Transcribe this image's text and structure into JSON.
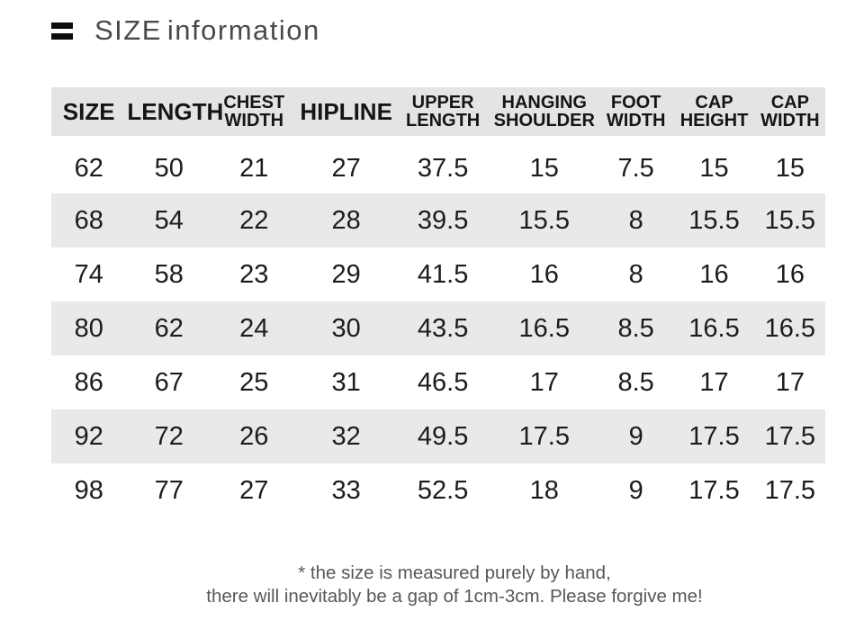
{
  "header": {
    "icon": "list-icon",
    "title_word1": "SIZE",
    "title_word2": "information"
  },
  "table": {
    "columns": [
      {
        "label": "SIZE",
        "lines": [
          "SIZE"
        ]
      },
      {
        "label": "LENGTH",
        "lines": [
          "LENGTH"
        ]
      },
      {
        "label": "CHEST WIDTH",
        "lines": [
          "CHEST",
          "WIDTH"
        ]
      },
      {
        "label": "HIPLINE",
        "lines": [
          "HIPLINE"
        ]
      },
      {
        "label": "UPPER LENGTH",
        "lines": [
          "UPPER",
          "LENGTH"
        ]
      },
      {
        "label": "HANGING SHOULDER",
        "lines": [
          "HANGING",
          "SHOULDER"
        ]
      },
      {
        "label": "FOOT WIDTH",
        "lines": [
          "FOOT",
          "WIDTH"
        ]
      },
      {
        "label": "CAP HEIGHT",
        "lines": [
          "CAP",
          "HEIGHT"
        ]
      },
      {
        "label": "CAP WIDTH",
        "lines": [
          "CAP",
          "WIDTH"
        ]
      }
    ],
    "col_widths_pct": [
      9.7,
      11.0,
      11.0,
      12.8,
      12.2,
      14.0,
      9.7,
      10.5,
      9.1
    ],
    "rows": [
      [
        "62",
        "50",
        "21",
        "27",
        "37.5",
        "15",
        "7.5",
        "15",
        "15"
      ],
      [
        "68",
        "54",
        "22",
        "28",
        "39.5",
        "15.5",
        "8",
        "15.5",
        "15.5"
      ],
      [
        "74",
        "58",
        "23",
        "29",
        "41.5",
        "16",
        "8",
        "16",
        "16"
      ],
      [
        "80",
        "62",
        "24",
        "30",
        "43.5",
        "16.5",
        "8.5",
        "16.5",
        "16.5"
      ],
      [
        "86",
        "67",
        "25",
        "31",
        "46.5",
        "17",
        "8.5",
        "17",
        "17"
      ],
      [
        "92",
        "72",
        "26",
        "32",
        "49.5",
        "17.5",
        "9",
        "17.5",
        "17.5"
      ],
      [
        "98",
        "77",
        "27",
        "33",
        "52.5",
        "18",
        "9",
        "17.5",
        "17.5"
      ]
    ]
  },
  "footer": {
    "line1": "* the size is measured purely by hand,",
    "line2": "there will inevitably be a gap of 1cm-3cm. Please forgive me!"
  },
  "colors": {
    "header_bg": "#e4e4e4",
    "stripe_bg": "#e9e9e9",
    "title_text": "#4a4a4a",
    "data_text": "#1c1c1c",
    "header_text": "#151515",
    "footer_text": "#585858",
    "icon": "#0d0d0d"
  }
}
